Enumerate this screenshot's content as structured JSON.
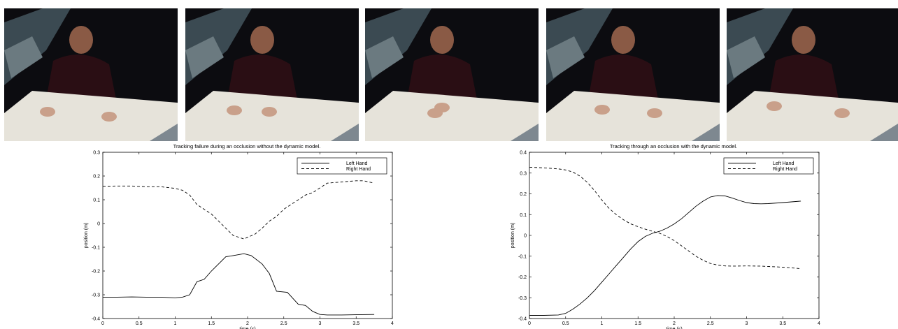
{
  "frames": [
    {
      "name": "frame-1",
      "description": "person at table, both hands resting apart"
    },
    {
      "name": "frame-2",
      "description": "hands moving toward each other"
    },
    {
      "name": "frame-3",
      "description": "hands overlapping (occlusion)"
    },
    {
      "name": "frame-4",
      "description": "hands separating"
    },
    {
      "name": "frame-5",
      "description": "hands apart again"
    }
  ],
  "chart_data": [
    {
      "type": "line",
      "title": "Tracking failure during an occlusion without the dynamic model.",
      "xlabel": "time (s)",
      "ylabel": "position (m)",
      "xlim": [
        0,
        4
      ],
      "ylim": [
        -0.4,
        0.3
      ],
      "xticks": [
        0,
        0.5,
        1,
        1.5,
        2,
        2.5,
        3,
        3.5,
        4
      ],
      "yticks": [
        -0.4,
        -0.3,
        -0.2,
        -0.1,
        0,
        0.1,
        0.2,
        0.3
      ],
      "legend_position": "top-right",
      "grid": false,
      "series": [
        {
          "name": "Left Hand",
          "style": "solid",
          "x": [
            0,
            0.2,
            0.4,
            0.6,
            0.8,
            1.0,
            1.1,
            1.2,
            1.3,
            1.4,
            1.5,
            1.6,
            1.7,
            1.8,
            1.95,
            2.05,
            2.2,
            2.3,
            2.4,
            2.55,
            2.7,
            2.8,
            2.9,
            3.0,
            3.1,
            3.3,
            3.5,
            3.75
          ],
          "y": [
            -0.31,
            -0.31,
            -0.309,
            -0.31,
            -0.31,
            -0.313,
            -0.31,
            -0.3,
            -0.245,
            -0.235,
            -0.2,
            -0.17,
            -0.14,
            -0.135,
            -0.127,
            -0.135,
            -0.17,
            -0.21,
            -0.285,
            -0.29,
            -0.34,
            -0.345,
            -0.37,
            -0.383,
            -0.385,
            -0.385,
            -0.384,
            -0.383
          ]
        },
        {
          "name": "Right Hand",
          "style": "dashed",
          "x": [
            0,
            0.2,
            0.4,
            0.6,
            0.8,
            1.0,
            1.1,
            1.2,
            1.3,
            1.4,
            1.5,
            1.6,
            1.7,
            1.8,
            1.9,
            1.95,
            2.0,
            2.1,
            2.2,
            2.3,
            2.4,
            2.5,
            2.6,
            2.7,
            2.8,
            2.9,
            3.0,
            3.1,
            3.3,
            3.5,
            3.6,
            3.75
          ],
          "y": [
            0.157,
            0.158,
            0.158,
            0.155,
            0.155,
            0.148,
            0.14,
            0.12,
            0.08,
            0.06,
            0.04,
            0.01,
            -0.02,
            -0.05,
            -0.06,
            -0.065,
            -0.058,
            -0.045,
            -0.02,
            0.01,
            0.03,
            0.06,
            0.08,
            0.1,
            0.12,
            0.13,
            0.15,
            0.17,
            0.175,
            0.18,
            0.18,
            0.17
          ]
        }
      ]
    },
    {
      "type": "line",
      "title": "Tracking through an occlusion with the dynamic model.",
      "xlabel": "time (s)",
      "ylabel": "position (m)",
      "xlim": [
        0,
        4
      ],
      "ylim": [
        -0.4,
        0.4
      ],
      "xticks": [
        0,
        0.5,
        1,
        1.5,
        2,
        2.5,
        3,
        3.5,
        4
      ],
      "yticks": [
        -0.4,
        -0.3,
        -0.2,
        -0.1,
        0,
        0.1,
        0.2,
        0.3,
        0.4
      ],
      "legend_position": "top-right",
      "grid": false,
      "series": [
        {
          "name": "Left Hand",
          "style": "solid",
          "x": [
            0,
            0.2,
            0.4,
            0.5,
            0.6,
            0.7,
            0.8,
            0.9,
            1.0,
            1.1,
            1.2,
            1.3,
            1.4,
            1.5,
            1.6,
            1.7,
            1.8,
            1.9,
            2.0,
            2.1,
            2.2,
            2.3,
            2.4,
            2.5,
            2.6,
            2.7,
            2.8,
            2.9,
            3.0,
            3.1,
            3.2,
            3.3,
            3.5,
            3.75
          ],
          "y": [
            -0.385,
            -0.385,
            -0.383,
            -0.375,
            -0.355,
            -0.33,
            -0.3,
            -0.265,
            -0.225,
            -0.185,
            -0.145,
            -0.105,
            -0.065,
            -0.03,
            -0.005,
            0.01,
            0.02,
            0.035,
            0.055,
            0.08,
            0.11,
            0.14,
            0.165,
            0.185,
            0.192,
            0.19,
            0.18,
            0.168,
            0.158,
            0.153,
            0.152,
            0.153,
            0.158,
            0.165
          ]
        },
        {
          "name": "Right Hand",
          "style": "dashed",
          "x": [
            0,
            0.2,
            0.4,
            0.5,
            0.6,
            0.7,
            0.8,
            0.9,
            1.0,
            1.1,
            1.2,
            1.3,
            1.4,
            1.5,
            1.6,
            1.7,
            1.8,
            1.9,
            2.0,
            2.1,
            2.2,
            2.3,
            2.4,
            2.5,
            2.6,
            2.7,
            2.8,
            3.0,
            3.2,
            3.5,
            3.75
          ],
          "y": [
            0.328,
            0.325,
            0.32,
            0.315,
            0.305,
            0.285,
            0.255,
            0.215,
            0.17,
            0.13,
            0.1,
            0.075,
            0.055,
            0.042,
            0.03,
            0.02,
            0.01,
            -0.005,
            -0.025,
            -0.05,
            -0.075,
            -0.1,
            -0.12,
            -0.135,
            -0.143,
            -0.147,
            -0.148,
            -0.147,
            -0.148,
            -0.153,
            -0.16
          ]
        }
      ]
    }
  ]
}
